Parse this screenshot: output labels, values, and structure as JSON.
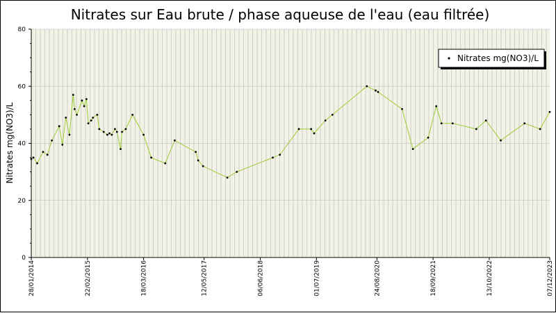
{
  "chart_data": {
    "type": "line",
    "title": "Nitrates sur Eau brute / phase aqueuse de l'eau (eau filtrée)",
    "xlabel": "",
    "ylabel": "Nitrates mg(NO3)/L",
    "ylim": [
      0,
      80
    ],
    "yticks": [
      0,
      20,
      40,
      60,
      80
    ],
    "xlim": [
      "2014-01-28",
      "2023-12-07"
    ],
    "xtick_labels": [
      "28/01/2014",
      "22/02/2015",
      "18/03/2016",
      "12/05/2017",
      "06/06/2018",
      "01/07/2019",
      "24/08/2020",
      "18/09/2021",
      "13/10/2022",
      "07/12/2023"
    ],
    "xtick_dates": [
      "2014-01-28",
      "2015-02-22",
      "2016-03-18",
      "2017-05-12",
      "2018-06-06",
      "2019-07-01",
      "2020-08-24",
      "2021-09-18",
      "2022-10-13",
      "2023-12-07"
    ],
    "grid": true,
    "legend_position": "top-right",
    "colors": {
      "line": "#9acd32",
      "marker": "#000000",
      "plot_bg": "#f2f2e6",
      "grid": "#b8b8b8"
    },
    "series": [
      {
        "name": "Nitrates mg(NO3)/L",
        "x": [
          "2014-01-28",
          "2014-02-12",
          "2014-03-10",
          "2014-04-20",
          "2014-05-20",
          "2014-06-20",
          "2014-08-10",
          "2014-09-01",
          "2014-09-25",
          "2014-10-20",
          "2014-11-15",
          "2014-11-25",
          "2014-12-10",
          "2015-01-15",
          "2015-01-30",
          "2015-02-15",
          "2015-02-28",
          "2015-03-20",
          "2015-04-01",
          "2015-05-01",
          "2015-05-15",
          "2015-06-15",
          "2015-07-10",
          "2015-07-25",
          "2015-08-10",
          "2015-09-01",
          "2015-09-15",
          "2015-10-10",
          "2015-10-20",
          "2015-11-15",
          "2016-01-01",
          "2016-03-18",
          "2016-05-10",
          "2016-08-15",
          "2016-10-20",
          "2017-03-15",
          "2017-04-01",
          "2017-05-05",
          "2017-10-20",
          "2017-12-25",
          "2018-09-01",
          "2018-10-20",
          "2019-03-01",
          "2019-05-25",
          "2019-06-15",
          "2019-09-01",
          "2019-10-20",
          "2020-06-15",
          "2020-08-15",
          "2020-09-01",
          "2021-02-15",
          "2021-05-01",
          "2021-08-15",
          "2021-10-10",
          "2021-11-15",
          "2022-02-01",
          "2022-07-15",
          "2022-09-20",
          "2023-01-01",
          "2023-06-15",
          "2023-10-01",
          "2023-12-07"
        ],
        "y": [
          34.5,
          35,
          33,
          37,
          36,
          41,
          46,
          39.5,
          49,
          43,
          57,
          52,
          50,
          55,
          53,
          55.5,
          47,
          48,
          49,
          50,
          45,
          44,
          43,
          43.5,
          43,
          45,
          44,
          38,
          44,
          45,
          50,
          43,
          35,
          33,
          41,
          37,
          34,
          32,
          28,
          30,
          35,
          36,
          45,
          45,
          43.5,
          48,
          50,
          60,
          58.5,
          58,
          52,
          38,
          42,
          53,
          47,
          47,
          45,
          48,
          41,
          47,
          45,
          51
        ]
      }
    ]
  }
}
